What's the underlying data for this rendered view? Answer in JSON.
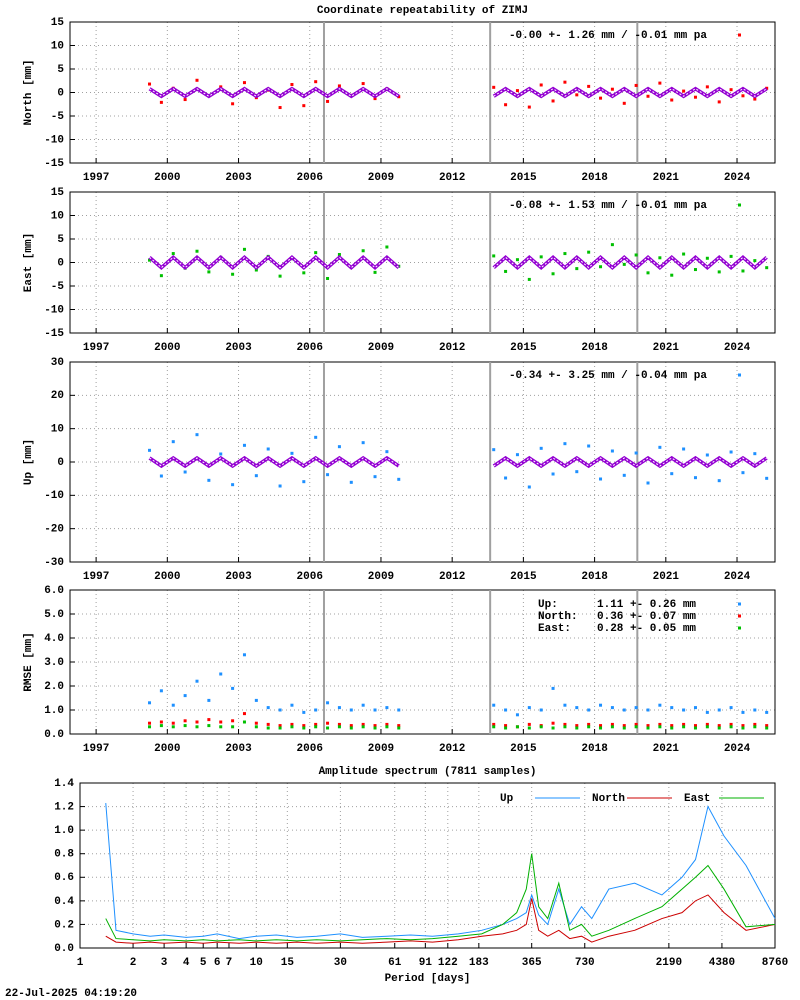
{
  "footer": "22-Jul-2025 04:19:20",
  "chart_data": [
    {
      "type": "scatter",
      "title": "Coordinate repeatability of ZIMJ",
      "ylabel": "North [mm]",
      "x": [
        1999.25,
        1999.75,
        2000.25,
        2000.75,
        2001.25,
        2001.75,
        2002.25,
        2002.75,
        2003.25,
        2003.75,
        2004.25,
        2004.75,
        2005.25,
        2005.75,
        2006.25,
        2006.75,
        2007.25,
        2007.75,
        2008.25,
        2008.75,
        2009.25,
        2009.75,
        2011.75,
        2013.75,
        2014.25,
        2014.75,
        2015.25,
        2015.75,
        2016.25,
        2016.75,
        2017.25,
        2017.75,
        2018.25,
        2018.75,
        2019.25,
        2019.75,
        2020.25,
        2020.75,
        2021.25,
        2021.75,
        2022.25,
        2022.75,
        2023.25,
        2023.75,
        2024.25,
        2024.75,
        2025.25
      ],
      "xlim": [
        1995.9,
        2025.6
      ],
      "xticks": [
        1997,
        2000,
        2003,
        2006,
        2009,
        2012,
        2015,
        2018,
        2021,
        2024
      ],
      "ylim": [
        -15,
        15
      ],
      "yticks": [
        -15,
        -10,
        -5,
        0,
        5,
        10,
        15
      ],
      "grid": true,
      "vlines": [
        2006.6,
        2013.6,
        2019.8
      ],
      "series": [
        {
          "name": "-0.00 +- 1.26 mm / -0.01 mm pa",
          "color": "#ff0000",
          "values": [
            1.8,
            -2.1,
            0.9,
            -1.5,
            2.6,
            -0.7,
            1.2,
            -2.4,
            2.1,
            -1.1,
            0.5,
            -3.2,
            1.7,
            -2.8,
            2.3,
            -1.9,
            1.4,
            -0.6,
            1.9,
            -1.3,
            0.8,
            -0.9,
            null,
            1.1,
            -2.6,
            0.4,
            -3.1,
            1.6,
            -1.8,
            2.2,
            -0.5,
            1.3,
            -1.2,
            0.7,
            -2.3,
            1.5,
            -0.8,
            2.0,
            -1.6,
            0.3,
            -1.0,
            1.2,
            -2.0,
            0.6,
            -0.7,
            -1.4,
            0.9
          ]
        },
        {
          "color": "#9400d3",
          "mark": "line",
          "values": [
            0.8,
            -0.8,
            0.8,
            -0.8,
            0.8,
            -0.8,
            0.8,
            -0.8,
            0.8,
            -0.8,
            0.8,
            -0.8,
            0.8,
            -0.8,
            0.8,
            -0.8,
            0.8,
            -0.8,
            0.8,
            -0.8,
            0.8,
            -0.8,
            null,
            -0.8,
            0.8,
            -0.8,
            0.8,
            -0.8,
            0.8,
            -0.8,
            0.8,
            -0.8,
            0.8,
            -0.8,
            0.8,
            -0.8,
            0.8,
            -0.8,
            0.8,
            -0.8,
            0.8,
            -0.8,
            0.8,
            -0.8,
            0.8,
            -0.8,
            0.8
          ]
        }
      ]
    },
    {
      "type": "scatter",
      "ylabel": "East [mm]",
      "x": [
        1999.25,
        1999.75,
        2000.25,
        2000.75,
        2001.25,
        2001.75,
        2002.25,
        2002.75,
        2003.25,
        2003.75,
        2004.25,
        2004.75,
        2005.25,
        2005.75,
        2006.25,
        2006.75,
        2007.25,
        2007.75,
        2008.25,
        2008.75,
        2009.25,
        2009.75,
        2011.75,
        2013.75,
        2014.25,
        2014.75,
        2015.25,
        2015.75,
        2016.25,
        2016.75,
        2017.25,
        2017.75,
        2018.25,
        2018.75,
        2019.25,
        2019.75,
        2020.25,
        2020.75,
        2021.25,
        2021.75,
        2022.25,
        2022.75,
        2023.25,
        2023.75,
        2024.25,
        2024.75,
        2025.25
      ],
      "xlim": [
        1995.9,
        2025.6
      ],
      "xticks": [
        1997,
        2000,
        2003,
        2006,
        2009,
        2012,
        2015,
        2018,
        2021,
        2024
      ],
      "ylim": [
        -15,
        15
      ],
      "yticks": [
        -15,
        -10,
        -5,
        0,
        5,
        10,
        15
      ],
      "grid": true,
      "vlines": [
        2006.6,
        2013.6,
        2019.8
      ],
      "series": [
        {
          "name": "-0.08 +- 1.53 mm / -0.01 mm pa",
          "color": "#00c000",
          "values": [
            0.5,
            -2.8,
            1.9,
            -1.2,
            2.4,
            -2.0,
            1.1,
            -2.5,
            2.8,
            -1.6,
            1.3,
            -2.9,
            0.8,
            -2.2,
            2.1,
            -3.4,
            1.7,
            -1.0,
            2.5,
            -2.1,
            3.3,
            -0.8,
            null,
            1.4,
            -1.9,
            0.6,
            -3.6,
            1.2,
            -2.4,
            1.9,
            -1.3,
            2.2,
            -0.9,
            3.8,
            -0.4,
            1.6,
            -2.2,
            1.0,
            -2.7,
            1.8,
            -1.5,
            0.9,
            -2.0,
            1.3,
            -1.8,
            0.4,
            -1.1
          ]
        },
        {
          "color": "#9400d3",
          "mark": "line",
          "values": [
            1.1,
            -1.1,
            1.1,
            -1.1,
            1.1,
            -1.1,
            1.1,
            -1.1,
            1.1,
            -1.1,
            1.1,
            -1.1,
            1.1,
            -1.1,
            1.1,
            -1.1,
            1.1,
            -1.1,
            1.1,
            -1.1,
            1.1,
            -1.1,
            null,
            -1.1,
            1.1,
            -1.1,
            1.1,
            -1.1,
            1.1,
            -1.1,
            1.1,
            -1.1,
            1.1,
            -1.1,
            1.1,
            -1.1,
            1.1,
            -1.1,
            1.1,
            -1.1,
            1.1,
            -1.1,
            1.1,
            -1.1,
            1.1,
            -1.1,
            1.1
          ]
        }
      ]
    },
    {
      "type": "scatter",
      "ylabel": "Up [mm]",
      "x": [
        1999.25,
        1999.75,
        2000.25,
        2000.75,
        2001.25,
        2001.75,
        2002.25,
        2002.75,
        2003.25,
        2003.75,
        2004.25,
        2004.75,
        2005.25,
        2005.75,
        2006.25,
        2006.75,
        2007.25,
        2007.75,
        2008.25,
        2008.75,
        2009.25,
        2009.75,
        2011.75,
        2013.75,
        2014.25,
        2014.75,
        2015.25,
        2015.75,
        2016.25,
        2016.75,
        2017.25,
        2017.75,
        2018.25,
        2018.75,
        2019.25,
        2019.75,
        2020.25,
        2020.75,
        2021.25,
        2021.75,
        2022.25,
        2022.75,
        2023.25,
        2023.75,
        2024.25,
        2024.75,
        2025.25
      ],
      "xlim": [
        1995.9,
        2025.6
      ],
      "xticks": [
        1997,
        2000,
        2003,
        2006,
        2009,
        2012,
        2015,
        2018,
        2021,
        2024
      ],
      "ylim": [
        -30,
        30
      ],
      "yticks": [
        -30,
        -20,
        -10,
        0,
        10,
        20,
        30
      ],
      "grid": true,
      "vlines": [
        2006.6,
        2013.6,
        2019.8
      ],
      "series": [
        {
          "name": "-0.34 +- 3.25 mm / -0.04 mm pa",
          "color": "#1e90ff",
          "values": [
            3.5,
            -4.2,
            6.1,
            -3.0,
            8.2,
            -5.5,
            2.4,
            -6.8,
            5.0,
            -4.1,
            3.9,
            -7.2,
            2.6,
            -5.9,
            7.4,
            -3.8,
            4.6,
            -6.1,
            5.8,
            -4.4,
            3.1,
            -5.2,
            null,
            3.7,
            -4.8,
            2.2,
            -7.5,
            4.1,
            -3.6,
            5.5,
            -2.9,
            4.8,
            -5.1,
            3.3,
            -4.0,
            2.7,
            -6.3,
            4.4,
            -3.5,
            3.9,
            -4.7,
            2.1,
            -5.6,
            3.0,
            -3.2,
            2.5,
            -4.9
          ]
        },
        {
          "color": "#9400d3",
          "mark": "line",
          "values": [
            1.2,
            -1.2,
            1.2,
            -1.2,
            1.2,
            -1.2,
            1.2,
            -1.2,
            1.2,
            -1.2,
            1.2,
            -1.2,
            1.2,
            -1.2,
            1.2,
            -1.2,
            1.2,
            -1.2,
            1.2,
            -1.2,
            1.2,
            -1.2,
            null,
            -1.2,
            1.2,
            -1.2,
            1.2,
            -1.2,
            1.2,
            -1.2,
            1.2,
            -1.2,
            1.2,
            -1.2,
            1.2,
            -1.2,
            1.2,
            -1.2,
            1.2,
            -1.2,
            1.2,
            -1.2,
            1.2,
            -1.2,
            1.2,
            -1.2,
            1.2
          ]
        }
      ]
    },
    {
      "type": "scatter",
      "ylabel": "RMSE [mm]",
      "x": [
        1999.25,
        1999.75,
        2000.25,
        2000.75,
        2001.25,
        2001.75,
        2002.25,
        2002.75,
        2003.25,
        2003.75,
        2004.25,
        2004.75,
        2005.25,
        2005.75,
        2006.25,
        2006.75,
        2007.25,
        2007.75,
        2008.25,
        2008.75,
        2009.25,
        2009.75,
        2011.75,
        2013.75,
        2014.25,
        2014.75,
        2015.25,
        2015.75,
        2016.25,
        2016.75,
        2017.25,
        2017.75,
        2018.25,
        2018.75,
        2019.25,
        2019.75,
        2020.25,
        2020.75,
        2021.25,
        2021.75,
        2022.25,
        2022.75,
        2023.25,
        2023.75,
        2024.25,
        2024.75,
        2025.25
      ],
      "xlim": [
        1995.9,
        2025.6
      ],
      "xticks": [
        1997,
        2000,
        2003,
        2006,
        2009,
        2012,
        2015,
        2018,
        2021,
        2024
      ],
      "ylim": [
        0,
        6
      ],
      "yticks": [
        {
          "value": 0,
          "label": "0.0"
        },
        {
          "value": 1,
          "label": "1.0"
        },
        {
          "value": 2,
          "label": "2.0"
        },
        {
          "value": 3,
          "label": "3.0"
        },
        {
          "value": 4,
          "label": "4.0"
        },
        {
          "value": 5,
          "label": "5.0"
        },
        {
          "value": 6,
          "label": "6.0"
        }
      ],
      "grid": true,
      "vlines": [
        2006.6,
        2013.6,
        2019.8
      ],
      "series": [
        {
          "name": "Up:",
          "stat": "1.11 +- 0.26 mm",
          "color": "#1e90ff",
          "values": [
            1.3,
            1.8,
            1.2,
            1.6,
            2.2,
            1.4,
            2.5,
            1.9,
            3.3,
            1.4,
            1.1,
            1.0,
            1.2,
            0.9,
            1.0,
            1.3,
            1.1,
            1.0,
            1.2,
            1.0,
            1.1,
            1.0,
            null,
            1.2,
            1.0,
            0.8,
            1.1,
            1.0,
            1.9,
            1.2,
            1.1,
            1.0,
            1.2,
            1.1,
            1.0,
            1.1,
            1.0,
            1.2,
            1.1,
            1.0,
            1.1,
            0.9,
            1.0,
            1.1,
            0.9,
            1.0,
            0.9
          ]
        },
        {
          "name": "North:",
          "stat": "0.36 +- 0.07 mm",
          "color": "#ff0000",
          "values": [
            0.45,
            0.5,
            0.45,
            0.55,
            0.5,
            0.6,
            0.5,
            0.55,
            0.85,
            0.45,
            0.4,
            0.35,
            0.4,
            0.35,
            0.4,
            0.45,
            0.4,
            0.35,
            0.4,
            0.35,
            0.4,
            0.35,
            null,
            0.4,
            0.35,
            0.3,
            0.4,
            0.35,
            0.45,
            0.4,
            0.35,
            0.4,
            0.35,
            0.4,
            0.35,
            0.4,
            0.35,
            0.4,
            0.35,
            0.4,
            0.35,
            0.4,
            0.35,
            0.4,
            0.35,
            0.4,
            0.35
          ]
        },
        {
          "name": "East:",
          "stat": "0.28 +- 0.05 mm",
          "color": "#00c000",
          "values": [
            0.3,
            0.35,
            0.3,
            0.35,
            0.3,
            0.35,
            0.3,
            0.3,
            0.5,
            0.3,
            0.25,
            0.25,
            0.3,
            0.25,
            0.3,
            0.25,
            0.3,
            0.25,
            0.3,
            0.25,
            0.3,
            0.25,
            null,
            0.3,
            0.25,
            0.3,
            0.25,
            0.3,
            0.25,
            0.3,
            0.25,
            0.3,
            0.25,
            0.3,
            0.25,
            0.3,
            0.25,
            0.3,
            0.25,
            0.3,
            0.25,
            0.3,
            0.25,
            0.3,
            0.25,
            0.3,
            0.25
          ]
        }
      ]
    },
    {
      "type": "line",
      "title": "Amplitude spectrum (7811 samples)",
      "xlabel": "Period [days]",
      "xscale": "log",
      "legend": "top right",
      "x": [
        1.4,
        1.6,
        2,
        2.5,
        3,
        4,
        5,
        6,
        8,
        10,
        13,
        17,
        22,
        30,
        40,
        55,
        75,
        100,
        140,
        190,
        250,
        300,
        340,
        365,
        400,
        450,
        520,
        600,
        700,
        800,
        1000,
        1400,
        2000,
        2600,
        3100,
        3650,
        4500,
        6000,
        8760
      ],
      "xlim": [
        1,
        8760
      ],
      "xticks": [
        1,
        2,
        3,
        4,
        5,
        6,
        7,
        10,
        15,
        30,
        61,
        91,
        122,
        183,
        365,
        730,
        2190,
        4380,
        8760
      ],
      "ylim": [
        0,
        1.4
      ],
      "yticks": [
        {
          "value": 0,
          "label": "0.0"
        },
        {
          "value": 0.2,
          "label": "0.2"
        },
        {
          "value": 0.4,
          "label": "0.4"
        },
        {
          "value": 0.6,
          "label": "0.6"
        },
        {
          "value": 0.8,
          "label": "0.8"
        },
        {
          "value": 1,
          "label": "1.0"
        },
        {
          "value": 1.2,
          "label": "1.2"
        },
        {
          "value": 1.4,
          "label": "1.4"
        }
      ],
      "grid": true,
      "series": [
        {
          "name": "Up",
          "color": "#1e90ff",
          "values": [
            1.23,
            0.15,
            0.12,
            0.1,
            0.11,
            0.09,
            0.1,
            0.12,
            0.08,
            0.1,
            0.11,
            0.09,
            0.1,
            0.12,
            0.09,
            0.1,
            0.11,
            0.1,
            0.12,
            0.15,
            0.2,
            0.25,
            0.3,
            0.45,
            0.28,
            0.2,
            0.5,
            0.2,
            0.35,
            0.25,
            0.5,
            0.55,
            0.45,
            0.6,
            0.75,
            1.2,
            0.95,
            0.7,
            0.25
          ]
        },
        {
          "name": "North",
          "color": "#cc0000",
          "values": [
            0.1,
            0.05,
            0.04,
            0.05,
            0.04,
            0.05,
            0.04,
            0.05,
            0.04,
            0.05,
            0.04,
            0.05,
            0.04,
            0.05,
            0.04,
            0.05,
            0.06,
            0.05,
            0.07,
            0.1,
            0.12,
            0.15,
            0.2,
            0.42,
            0.15,
            0.1,
            0.15,
            0.08,
            0.1,
            0.05,
            0.1,
            0.15,
            0.25,
            0.3,
            0.4,
            0.45,
            0.3,
            0.15,
            0.2
          ]
        },
        {
          "name": "East",
          "color": "#00b000",
          "values": [
            0.25,
            0.08,
            0.07,
            0.06,
            0.07,
            0.06,
            0.07,
            0.06,
            0.07,
            0.06,
            0.07,
            0.06,
            0.07,
            0.06,
            0.07,
            0.08,
            0.07,
            0.08,
            0.1,
            0.12,
            0.2,
            0.3,
            0.5,
            0.8,
            0.35,
            0.25,
            0.55,
            0.15,
            0.2,
            0.1,
            0.15,
            0.25,
            0.35,
            0.5,
            0.6,
            0.7,
            0.5,
            0.18,
            0.2
          ]
        }
      ]
    }
  ]
}
